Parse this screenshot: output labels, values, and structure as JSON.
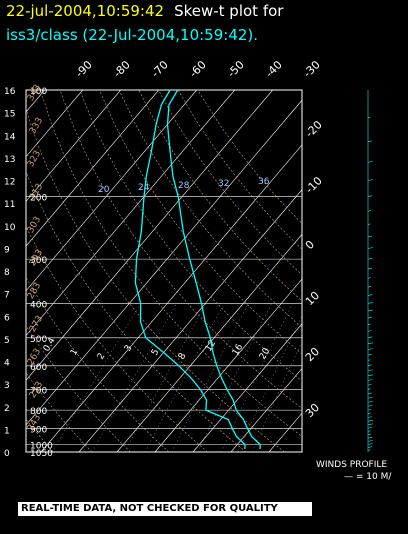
{
  "title": {
    "datetime": "22-jul-2004,10:59:42",
    "plot_type": "Skew-t plot for",
    "subtitle": "iss3/class (22-Jul-2004,10:59:42)."
  },
  "winds": {
    "label": "WINDS PROFILE",
    "scale": "— = 10 M/"
  },
  "banner": "REAL-TIME DATA, NOT CHECKED FOR QUALITY",
  "colors": {
    "background": "#000000",
    "title_date": "#ffff00",
    "title_text": "#ffffff",
    "subtitle": "#00ffff",
    "trace": "#00ffff",
    "grid": "#ffffff",
    "dry_adiabat": "#d2a070",
    "mixing_ratio": "#a0c8ff",
    "moist_adiabat": "#ffffff"
  },
  "chart_data": {
    "type": "line",
    "title": "",
    "pressure_axis_labels_left": [
      16,
      15,
      14,
      13,
      12,
      11,
      10,
      9,
      8,
      7,
      6,
      5,
      4,
      3,
      2,
      1,
      0
    ],
    "isobars": [
      100,
      200,
      300,
      400,
      500,
      600,
      700,
      800,
      900,
      1000,
      1050
    ],
    "isotherm_top_labels": [
      -90,
      -80,
      -70,
      -60,
      -50,
      -40,
      -30
    ],
    "isotherm_right_labels": [
      -20,
      -10,
      0,
      10,
      20,
      30
    ],
    "mixing_ratio_labels": [
      20,
      24,
      28,
      32,
      36
    ],
    "dry_adiabat_labels": [
      243,
      253,
      263,
      273,
      283,
      293,
      303,
      313,
      323,
      333,
      343
    ],
    "moist_adiabat_labels": [
      0.4,
      1,
      2,
      3,
      5,
      8,
      12,
      16,
      20
    ],
    "series": [
      {
        "name": "",
        "kind": "temperature",
        "points": [
          [
            1030,
            27
          ],
          [
            1000,
            26
          ],
          [
            950,
            22
          ],
          [
            900,
            19
          ],
          [
            850,
            16
          ],
          [
            800,
            12
          ],
          [
            750,
            9
          ],
          [
            700,
            5
          ],
          [
            650,
            1
          ],
          [
            600,
            -3
          ],
          [
            550,
            -7
          ],
          [
            500,
            -11
          ],
          [
            450,
            -16
          ],
          [
            400,
            -21
          ],
          [
            350,
            -27
          ],
          [
            300,
            -34
          ],
          [
            250,
            -42
          ],
          [
            200,
            -51
          ],
          [
            175,
            -57
          ],
          [
            150,
            -63
          ],
          [
            125,
            -70
          ],
          [
            110,
            -74
          ],
          [
            100,
            -75
          ]
        ]
      },
      {
        "name": "",
        "kind": "dewpoint",
        "points": [
          [
            1030,
            23
          ],
          [
            1000,
            22
          ],
          [
            950,
            18
          ],
          [
            900,
            15
          ],
          [
            850,
            12
          ],
          [
            800,
            4
          ],
          [
            750,
            2
          ],
          [
            700,
            -2
          ],
          [
            650,
            -7
          ],
          [
            600,
            -13
          ],
          [
            550,
            -20
          ],
          [
            500,
            -28
          ],
          [
            450,
            -33
          ],
          [
            400,
            -37
          ],
          [
            350,
            -43
          ],
          [
            300,
            -48
          ],
          [
            250,
            -53
          ],
          [
            200,
            -60
          ],
          [
            175,
            -64
          ],
          [
            150,
            -68
          ],
          [
            125,
            -73
          ],
          [
            110,
            -76
          ],
          [
            100,
            -77
          ]
        ]
      }
    ]
  }
}
